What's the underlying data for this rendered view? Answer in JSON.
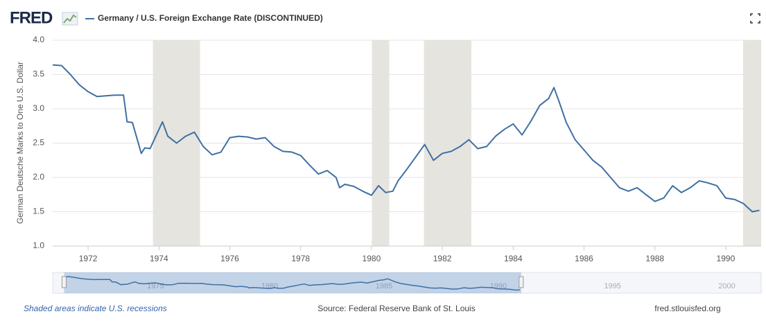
{
  "logo": "FRED",
  "chart_data": {
    "type": "line",
    "y_label": "German Deutsche Marks to One U.S. Dollar",
    "xlim": [
      1971,
      1991
    ],
    "xticks": [
      1972,
      1974,
      1976,
      1978,
      1980,
      1982,
      1984,
      1986,
      1988,
      1990
    ],
    "ylim": [
      1,
      4
    ],
    "yticks": [
      {
        "value": 1,
        "label": "1.0"
      },
      1.5,
      {
        "value": 2,
        "label": "2.0"
      },
      2.5,
      {
        "value": 3,
        "label": "3.0"
      },
      3.5,
      {
        "value": 4,
        "label": "4.0"
      }
    ],
    "grid": true,
    "recessions": [
      [
        1973.83,
        1975.16
      ],
      [
        1980.01,
        1980.5
      ],
      [
        1981.48,
        1982.82
      ],
      [
        1990.49,
        1991.02
      ]
    ],
    "recession_color": "#e6e4df",
    "x": [
      1971.0,
      1971.25,
      1971.5,
      1971.75,
      1972.0,
      1972.25,
      1972.5,
      1972.75,
      1973.0,
      1973.1,
      1973.25,
      1973.5,
      1973.6,
      1973.75,
      1974.0,
      1974.1,
      1974.25,
      1974.5,
      1974.75,
      1975.0,
      1975.25,
      1975.5,
      1975.75,
      1976.0,
      1976.25,
      1976.5,
      1976.75,
      1977.0,
      1977.25,
      1977.5,
      1977.75,
      1978.0,
      1978.25,
      1978.5,
      1978.75,
      1979.0,
      1979.1,
      1979.25,
      1979.5,
      1979.75,
      1980.0,
      1980.2,
      1980.4,
      1980.6,
      1980.75,
      1981.0,
      1981.25,
      1981.5,
      1981.75,
      1982.0,
      1982.25,
      1982.5,
      1982.75,
      1983.0,
      1983.25,
      1983.5,
      1983.75,
      1984.0,
      1984.25,
      1984.5,
      1984.75,
      1985.0,
      1985.15,
      1985.3,
      1985.5,
      1985.75,
      1986.0,
      1986.25,
      1986.5,
      1986.75,
      1987.0,
      1987.25,
      1987.5,
      1987.75,
      1988.0,
      1988.25,
      1988.5,
      1988.75,
      1989.0,
      1989.25,
      1989.5,
      1989.75,
      1990.0,
      1990.25,
      1990.5,
      1990.75,
      1990.95
    ],
    "series": [
      {
        "name": "Germany / U.S. Foreign Exchange Rate (DISCONTINUED)",
        "color": "#3f6fa3",
        "values": [
          3.64,
          3.63,
          3.5,
          3.35,
          3.25,
          3.18,
          3.19,
          3.2,
          3.2,
          2.81,
          2.8,
          2.35,
          2.43,
          2.42,
          2.7,
          2.81,
          2.6,
          2.5,
          2.6,
          2.66,
          2.45,
          2.33,
          2.37,
          2.58,
          2.6,
          2.59,
          2.56,
          2.58,
          2.45,
          2.38,
          2.37,
          2.32,
          2.18,
          2.05,
          2.1,
          2.0,
          1.85,
          1.9,
          1.87,
          1.8,
          1.74,
          1.88,
          1.78,
          1.8,
          1.95,
          2.12,
          2.3,
          2.48,
          2.25,
          2.35,
          2.38,
          2.45,
          2.55,
          2.42,
          2.45,
          2.6,
          2.7,
          2.78,
          2.62,
          2.82,
          3.05,
          3.15,
          3.31,
          3.1,
          2.8,
          2.55,
          2.4,
          2.25,
          2.15,
          2.0,
          1.85,
          1.8,
          1.85,
          1.75,
          1.65,
          1.7,
          1.88,
          1.78,
          1.85,
          1.95,
          1.92,
          1.88,
          1.7,
          1.68,
          1.62,
          1.5,
          1.52
        ]
      }
    ],
    "navigator": {
      "xlim": [
        1970.5,
        2001.5
      ],
      "xticks": [
        1975,
        1980,
        1985,
        1990,
        1995,
        2000
      ],
      "window": [
        1971,
        1991
      ]
    },
    "footnote": "Shaded areas indicate U.S. recessions",
    "source": "Source: Federal Reserve Bank of St. Louis",
    "site": "fred.stlouisfed.org"
  }
}
